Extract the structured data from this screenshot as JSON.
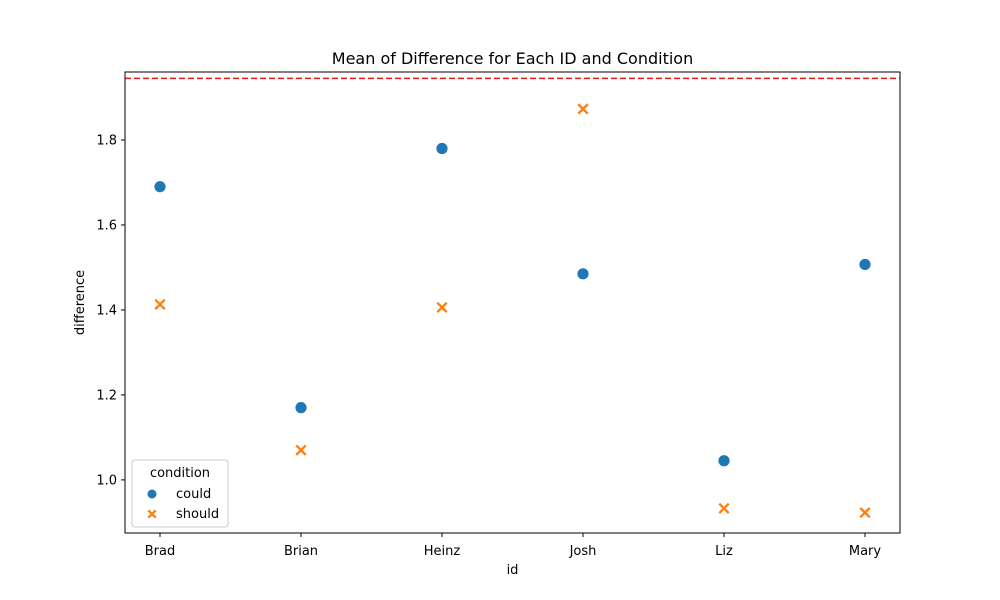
{
  "chart_data": {
    "type": "scatter",
    "title": "Mean of Difference for Each ID and Condition",
    "xlabel": "id",
    "ylabel": "difference",
    "categories": [
      "Brad",
      "Brian",
      "Heinz",
      "Josh",
      "Liz",
      "Mary"
    ],
    "ylim": [
      0.875,
      1.96
    ],
    "yticks": [
      1.0,
      1.2,
      1.4,
      1.6,
      1.8
    ],
    "ytick_labels": [
      "1.0",
      "1.2",
      "1.4",
      "1.6",
      "1.8"
    ],
    "grid": false,
    "legend": {
      "title": "condition",
      "placement": "lower-left"
    },
    "reference_line": {
      "y": 1.945,
      "style": "dashed",
      "color": "#e8191a"
    },
    "series": [
      {
        "name": "could",
        "marker": "circle",
        "color": "#1f77b4",
        "values": [
          1.69,
          1.17,
          1.78,
          1.485,
          1.045,
          1.507
        ]
      },
      {
        "name": "should",
        "marker": "x",
        "color": "#ff7f0e",
        "values": [
          1.413,
          1.07,
          1.406,
          1.873,
          0.933,
          0.923
        ]
      }
    ]
  }
}
